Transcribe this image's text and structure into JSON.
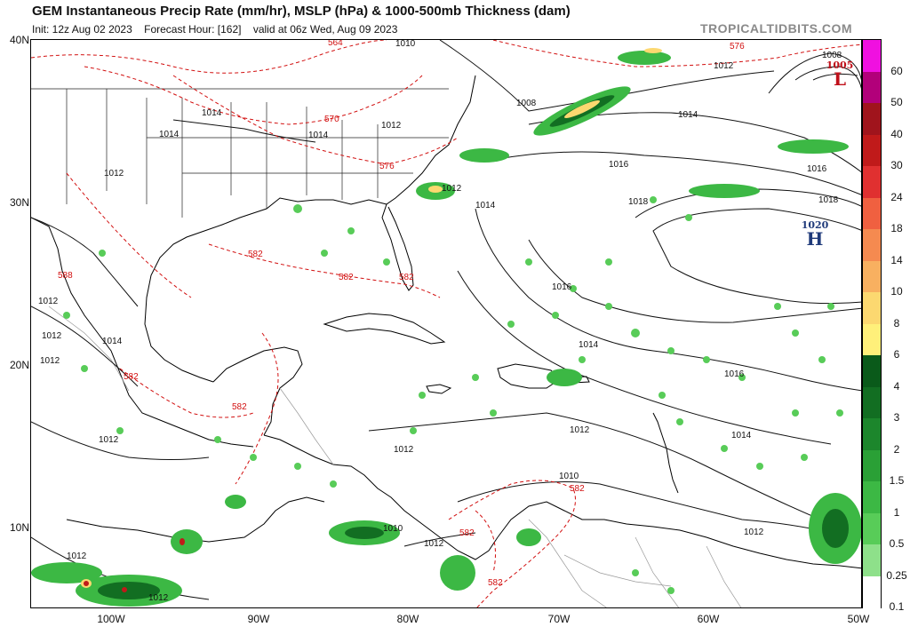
{
  "header": {
    "title": "GEM Instantaneous Precip Rate (mm/hr), MSLP (hPa) & 1000-500mb Thickness (dam)",
    "init": "Init: 12z Aug 02 2023",
    "forecast_hour": "Forecast Hour: [162]",
    "valid": "valid at 06z Wed, Aug 09 2023",
    "brand": "TROPICALTIDBITS.COM"
  },
  "axes": {
    "latitude_labels": [
      "40N",
      "30N",
      "20N",
      "10N"
    ],
    "longitude_labels": [
      "100W",
      "90W",
      "80W",
      "70W",
      "60W",
      "50W"
    ]
  },
  "colorbar": {
    "labels": [
      "60",
      "50",
      "40",
      "30",
      "24",
      "18",
      "14",
      "10",
      "8",
      "6",
      "4",
      "3",
      "2",
      "1.5",
      "1",
      "0.5",
      "0.25",
      "0.1"
    ],
    "colors": [
      "#f010e0",
      "#b2007a",
      "#a0141c",
      "#c01a1a",
      "#e03030",
      "#f06040",
      "#f58a50",
      "#f8b060",
      "#fcd870",
      "#fff07a",
      "#0a5a1a",
      "#126e22",
      "#1c862c",
      "#2aa036",
      "#3cb844",
      "#58cc58",
      "#8ee08a",
      "#ffffff"
    ]
  },
  "pressure_centers": [
    {
      "type": "high",
      "value": "1020",
      "letter": "H"
    },
    {
      "type": "low",
      "value": "1005",
      "letter": "L"
    }
  ],
  "isobar_labels": [
    "1010",
    "1012",
    "1014",
    "1014",
    "1014",
    "1012",
    "1012",
    "1012",
    "1014",
    "1016",
    "1016",
    "1018",
    "1018",
    "1016",
    "1014",
    "1016",
    "1014",
    "1012",
    "1012",
    "1012",
    "1012",
    "1010",
    "1010",
    "1012",
    "1012",
    "1012",
    "1008",
    "1008",
    "1014",
    "1012",
    "1014",
    "1012",
    "1012"
  ],
  "thickness_labels": [
    "564",
    "570",
    "576",
    "576",
    "582",
    "582",
    "582",
    "588",
    "582",
    "582",
    "582",
    "582",
    "582"
  ],
  "colors": {
    "thickness": "#d21010",
    "isobar": "#111111",
    "high": "#1f3a7a",
    "low": "#c0101a",
    "brand": "#8a8a8a"
  }
}
